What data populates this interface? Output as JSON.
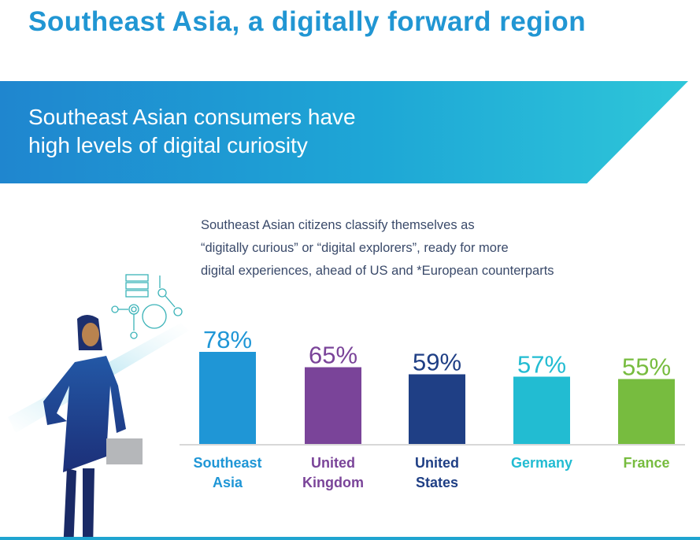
{
  "title": "Southeast Asia, a digitally forward region",
  "banner": {
    "line1": "Southeast Asian consumers have",
    "line2": "high levels of digital curiosity"
  },
  "description": {
    "line1": "Southeast Asian citizens classify themselves as",
    "line2": "“digitally curious” or “digital explorers”, ready for more",
    "line3": "digital experiences, ahead of US and *European counterparts"
  },
  "chart_data": {
    "type": "bar",
    "categories": [
      [
        "Southeast",
        "Asia"
      ],
      [
        "United",
        "Kingdom"
      ],
      [
        "United",
        "States"
      ],
      [
        "Germany"
      ],
      [
        "France"
      ]
    ],
    "values": [
      78,
      65,
      59,
      57,
      55
    ],
    "labels": [
      "78%",
      "65%",
      "59%",
      "57%",
      "55%"
    ],
    "colors": [
      "#1f96d6",
      "#7a4499",
      "#1f3f85",
      "#22bcd2",
      "#77bc3f"
    ],
    "label_colors": [
      "#1f96d6",
      "#7a4499",
      "#1f3f85",
      "#22bcd2",
      "#77bc3f"
    ],
    "title": "",
    "xlabel": "",
    "ylabel": "",
    "ylim": [
      0,
      100
    ],
    "grid": false
  }
}
